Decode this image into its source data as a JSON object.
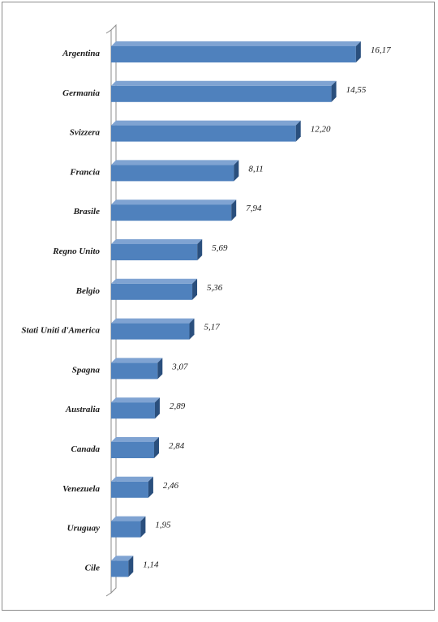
{
  "chart_data": {
    "type": "bar",
    "orientation": "horizontal",
    "style": "3d",
    "categories": [
      "Argentina",
      "Germania",
      "Svizzera",
      "Francia",
      "Brasile",
      "Regno Unito",
      "Belgio",
      "Stati Uniti d'America",
      "Spagna",
      "Australia",
      "Canada",
      "Venezuela",
      "Uruguay",
      "Cile"
    ],
    "values": [
      16.17,
      14.55,
      12.2,
      8.11,
      7.94,
      5.69,
      5.36,
      5.17,
      3.07,
      2.89,
      2.84,
      2.46,
      1.95,
      1.14
    ],
    "value_labels": [
      "16,17",
      "14,55",
      "12,20",
      "8,11",
      "7,94",
      "5,69",
      "5,36",
      "5,17",
      "3,07",
      "2,89",
      "2,84",
      "2,46",
      "1,95",
      "1,14"
    ],
    "title": "",
    "xlabel": "",
    "ylabel": "",
    "xlim": [
      0,
      18
    ],
    "grid": false,
    "legend": "none",
    "colors": {
      "bar_front": "#4f81bd",
      "bar_top": "#7fa3d2",
      "bar_side": "#2a4f7d",
      "axis": "#8c8c8c"
    }
  }
}
